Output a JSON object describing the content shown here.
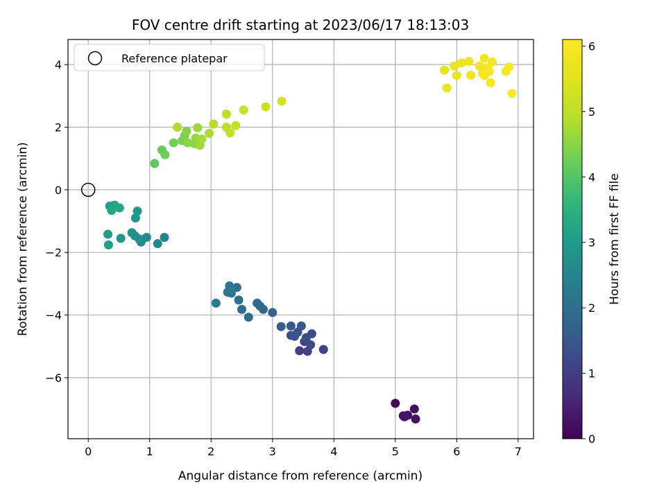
{
  "chart_data": {
    "type": "scatter",
    "title": "FOV centre drift starting at 2023/06/17 18:13:03",
    "xlabel": "Angular distance from reference (arcmin)",
    "ylabel": "Rotation from reference (arcmin)",
    "xlim": [
      -0.33,
      7.25
    ],
    "ylim": [
      -7.95,
      4.8
    ],
    "x_ticks": [
      0,
      1,
      2,
      3,
      4,
      5,
      6,
      7
    ],
    "y_ticks": [
      -6,
      -4,
      -2,
      0,
      2,
      4
    ],
    "grid": true,
    "legend": {
      "position": "top-left",
      "entries": [
        "Reference platepar"
      ]
    },
    "colorbar": {
      "label": "Hours from first FF file",
      "range": [
        0,
        6.1
      ],
      "ticks": [
        0,
        1,
        2,
        3,
        4,
        5,
        6
      ],
      "colormap": "viridis"
    },
    "reference_point": {
      "x": 0,
      "y": 0
    },
    "points": [
      {
        "x": 5.0,
        "y": -6.82,
        "c": 0.05
      },
      {
        "x": 5.13,
        "y": -7.22,
        "c": 0.1
      },
      {
        "x": 5.2,
        "y": -7.2,
        "c": 0.15
      },
      {
        "x": 5.31,
        "y": -7.0,
        "c": 0.2
      },
      {
        "x": 5.33,
        "y": -7.32,
        "c": 0.25
      },
      {
        "x": 5.15,
        "y": -7.25,
        "c": 0.3
      },
      {
        "x": 3.44,
        "y": -5.14,
        "c": 1.0
      },
      {
        "x": 3.57,
        "y": -5.16,
        "c": 1.05
      },
      {
        "x": 3.83,
        "y": -5.1,
        "c": 1.1
      },
      {
        "x": 3.52,
        "y": -4.85,
        "c": 1.15
      },
      {
        "x": 3.62,
        "y": -4.95,
        "c": 1.2
      },
      {
        "x": 3.55,
        "y": -4.72,
        "c": 1.25
      },
      {
        "x": 3.64,
        "y": -4.6,
        "c": 1.3
      },
      {
        "x": 3.3,
        "y": -4.65,
        "c": 1.35
      },
      {
        "x": 3.36,
        "y": -4.68,
        "c": 1.4
      },
      {
        "x": 3.41,
        "y": -4.55,
        "c": 1.45
      },
      {
        "x": 3.47,
        "y": -4.35,
        "c": 1.5
      },
      {
        "x": 3.3,
        "y": -4.35,
        "c": 1.55
      },
      {
        "x": 3.14,
        "y": -4.37,
        "c": 1.6
      },
      {
        "x": 3.0,
        "y": -3.92,
        "c": 1.7
      },
      {
        "x": 2.85,
        "y": -3.82,
        "c": 1.75
      },
      {
        "x": 2.8,
        "y": -3.72,
        "c": 1.8
      },
      {
        "x": 2.75,
        "y": -3.62,
        "c": 1.85
      },
      {
        "x": 2.61,
        "y": -4.07,
        "c": 1.9
      },
      {
        "x": 2.5,
        "y": -3.82,
        "c": 1.95
      },
      {
        "x": 2.45,
        "y": -3.52,
        "c": 2.0
      },
      {
        "x": 2.42,
        "y": -3.12,
        "c": 2.05
      },
      {
        "x": 2.33,
        "y": -3.3,
        "c": 2.1
      },
      {
        "x": 2.3,
        "y": -3.07,
        "c": 2.15
      },
      {
        "x": 2.27,
        "y": -3.27,
        "c": 2.2
      },
      {
        "x": 2.32,
        "y": -3.22,
        "c": 2.25
      },
      {
        "x": 2.08,
        "y": -3.62,
        "c": 2.3
      },
      {
        "x": 1.24,
        "y": -1.52,
        "c": 2.5
      },
      {
        "x": 1.13,
        "y": -1.72,
        "c": 2.55
      },
      {
        "x": 0.95,
        "y": -1.52,
        "c": 2.6
      },
      {
        "x": 0.86,
        "y": -1.67,
        "c": 2.65
      },
      {
        "x": 0.83,
        "y": -1.57,
        "c": 2.7
      },
      {
        "x": 0.76,
        "y": -1.47,
        "c": 2.75
      },
      {
        "x": 0.71,
        "y": -1.37,
        "c": 2.8
      },
      {
        "x": 0.77,
        "y": -0.9,
        "c": 2.85
      },
      {
        "x": 0.8,
        "y": -0.68,
        "c": 2.9
      },
      {
        "x": 0.53,
        "y": -1.55,
        "c": 2.95
      },
      {
        "x": 0.32,
        "y": -1.42,
        "c": 3.0
      },
      {
        "x": 0.33,
        "y": -1.76,
        "c": 3.05
      },
      {
        "x": 0.35,
        "y": -0.52,
        "c": 3.1
      },
      {
        "x": 0.39,
        "y": -0.54,
        "c": 3.15
      },
      {
        "x": 0.43,
        "y": -0.49,
        "c": 3.2
      },
      {
        "x": 0.38,
        "y": -0.66,
        "c": 3.25
      },
      {
        "x": 0.51,
        "y": -0.58,
        "c": 3.3
      },
      {
        "x": 1.08,
        "y": 0.84,
        "c": 4.1
      },
      {
        "x": 1.2,
        "y": 1.27,
        "c": 4.2
      },
      {
        "x": 1.25,
        "y": 1.12,
        "c": 4.25
      },
      {
        "x": 1.39,
        "y": 1.5,
        "c": 4.3
      },
      {
        "x": 1.53,
        "y": 1.57,
        "c": 4.35
      },
      {
        "x": 1.57,
        "y": 1.72,
        "c": 4.4
      },
      {
        "x": 1.6,
        "y": 1.87,
        "c": 4.45
      },
      {
        "x": 1.62,
        "y": 1.5,
        "c": 4.5
      },
      {
        "x": 1.73,
        "y": 1.47,
        "c": 4.55
      },
      {
        "x": 1.75,
        "y": 1.65,
        "c": 4.6
      },
      {
        "x": 1.78,
        "y": 1.98,
        "c": 4.65
      },
      {
        "x": 1.82,
        "y": 1.42,
        "c": 4.7
      },
      {
        "x": 1.85,
        "y": 1.62,
        "c": 4.75
      },
      {
        "x": 1.97,
        "y": 1.8,
        "c": 4.8
      },
      {
        "x": 1.45,
        "y": 2.0,
        "c": 4.85
      },
      {
        "x": 2.04,
        "y": 2.1,
        "c": 4.9
      },
      {
        "x": 2.25,
        "y": 2.0,
        "c": 4.95
      },
      {
        "x": 2.25,
        "y": 2.42,
        "c": 5.0
      },
      {
        "x": 2.31,
        "y": 1.82,
        "c": 5.05
      },
      {
        "x": 2.4,
        "y": 2.05,
        "c": 5.1
      },
      {
        "x": 2.53,
        "y": 2.55,
        "c": 5.15
      },
      {
        "x": 2.89,
        "y": 2.65,
        "c": 5.2
      },
      {
        "x": 3.15,
        "y": 2.83,
        "c": 5.3
      },
      {
        "x": 5.8,
        "y": 3.82,
        "c": 5.6
      },
      {
        "x": 5.84,
        "y": 3.25,
        "c": 5.65
      },
      {
        "x": 5.96,
        "y": 3.95,
        "c": 5.7
      },
      {
        "x": 6.0,
        "y": 3.65,
        "c": 5.72
      },
      {
        "x": 6.08,
        "y": 4.05,
        "c": 5.75
      },
      {
        "x": 6.2,
        "y": 4.1,
        "c": 5.78
      },
      {
        "x": 6.23,
        "y": 3.66,
        "c": 5.8
      },
      {
        "x": 6.37,
        "y": 3.95,
        "c": 5.82
      },
      {
        "x": 6.42,
        "y": 3.72,
        "c": 5.85
      },
      {
        "x": 6.45,
        "y": 4.2,
        "c": 5.88
      },
      {
        "x": 6.48,
        "y": 3.8,
        "c": 5.9
      },
      {
        "x": 6.5,
        "y": 3.9,
        "c": 5.92
      },
      {
        "x": 6.53,
        "y": 3.78,
        "c": 5.95
      },
      {
        "x": 6.55,
        "y": 3.42,
        "c": 5.97
      },
      {
        "x": 6.58,
        "y": 4.08,
        "c": 6.0
      },
      {
        "x": 6.8,
        "y": 3.78,
        "c": 6.02
      },
      {
        "x": 6.85,
        "y": 3.92,
        "c": 6.04
      },
      {
        "x": 6.9,
        "y": 3.08,
        "c": 6.08
      },
      {
        "x": 6.45,
        "y": 3.65,
        "c": 5.98
      }
    ]
  }
}
